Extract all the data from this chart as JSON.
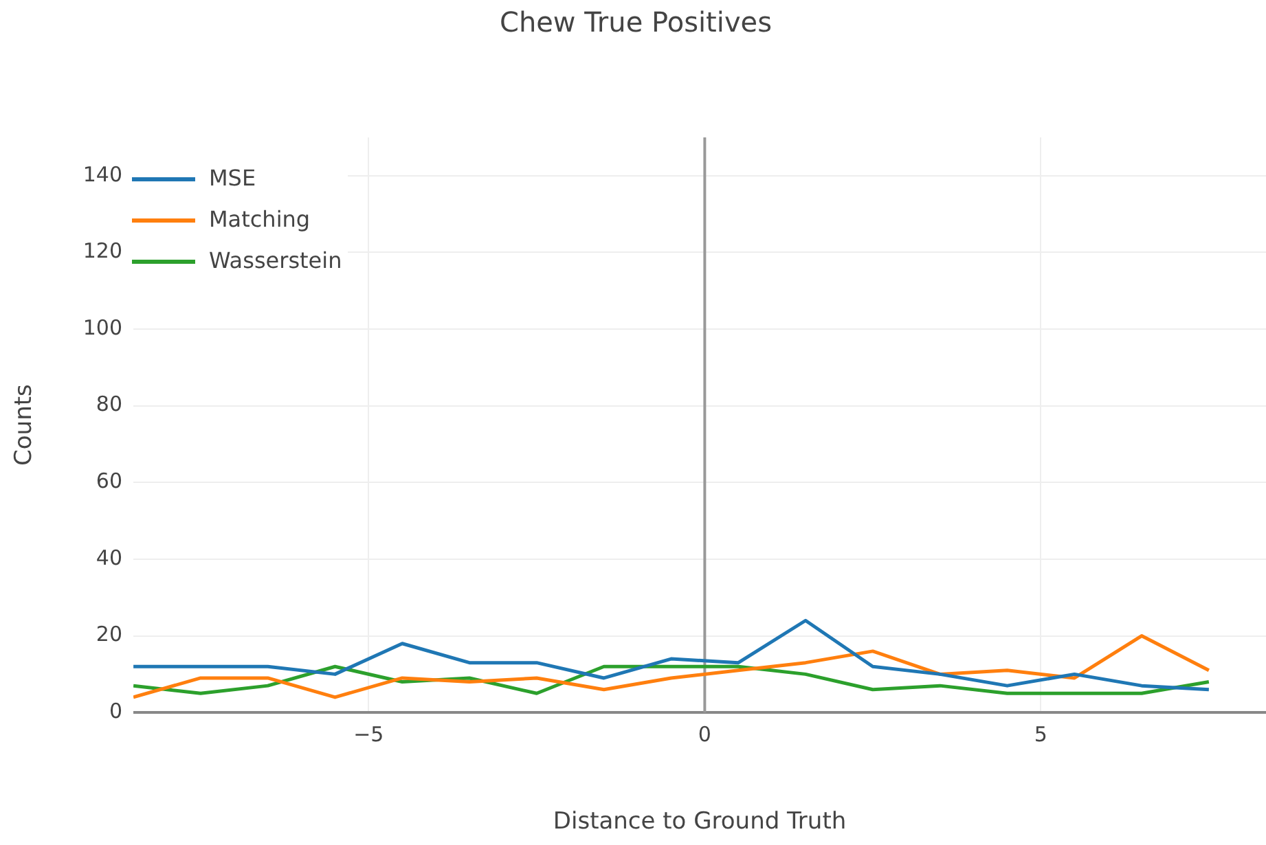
{
  "chart_data": {
    "type": "line",
    "title": "Chew True Positives",
    "xlabel": "Distance to Ground Truth",
    "ylabel": "Counts",
    "x": [
      -8.5,
      -7.5,
      -6.5,
      -5.5,
      -4.5,
      -3.5,
      -2.5,
      -1.5,
      -0.5,
      0.5,
      1.5,
      2.5,
      3.5,
      4.5,
      5.5,
      6.5,
      7.5
    ],
    "series": [
      {
        "name": "MSE",
        "color": "#1f77b4",
        "values": [
          12,
          12,
          12,
          10,
          18,
          13,
          13,
          9,
          14,
          13,
          24,
          12,
          10,
          7,
          10,
          7,
          6
        ]
      },
      {
        "name": "Matching",
        "color": "#ff7f0e",
        "values": [
          4,
          9,
          9,
          4,
          9,
          8,
          9,
          6,
          9,
          11,
          13,
          16,
          10,
          11,
          9,
          20,
          11
        ]
      },
      {
        "name": "Wasserstein",
        "color": "#2ca02c",
        "values": [
          7,
          5,
          7,
          12,
          8,
          9,
          5,
          12,
          12,
          12,
          10,
          6,
          7,
          5,
          5,
          5,
          8
        ]
      }
    ],
    "xlim": [
      -8.5,
      8.35
    ],
    "xticks": [
      {
        "value": -5,
        "label": "−5"
      },
      0,
      5
    ],
    "ylim": [
      0,
      150
    ],
    "yticks": [
      0,
      20,
      40,
      60,
      80,
      100,
      120,
      140
    ],
    "ref_lines": [
      {
        "axis": "x",
        "value": 0,
        "color": "#999999"
      }
    ],
    "grid": true,
    "legend": "top left",
    "marker": "none",
    "line_style": "solid"
  }
}
